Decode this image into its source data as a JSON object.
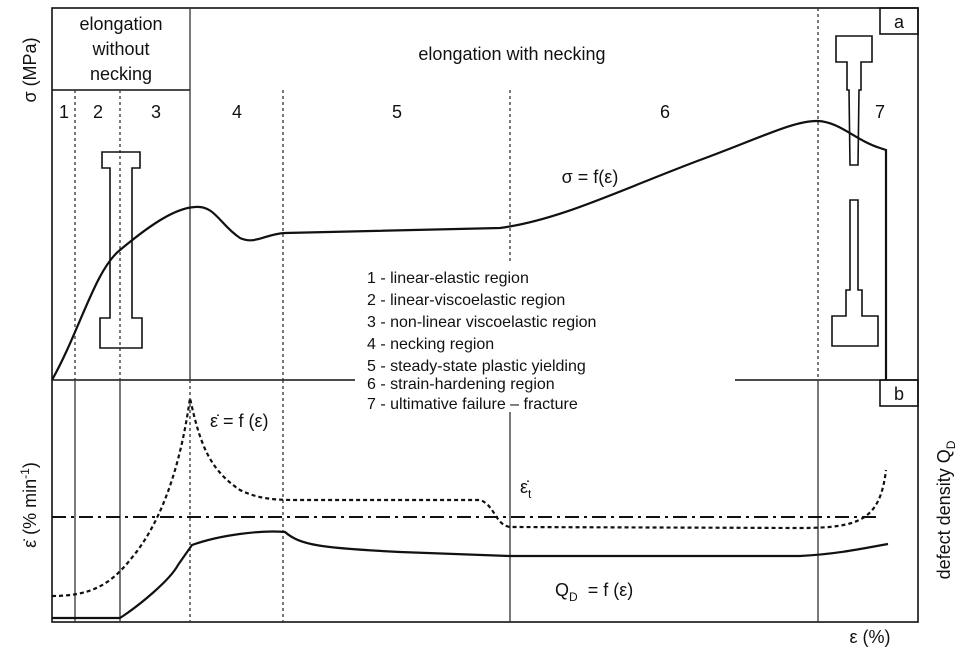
{
  "panel_a": {
    "label": "a",
    "y_axis_label": "σ (MPa)",
    "header_left": [
      "elongation",
      "without",
      "necking"
    ],
    "header_right": "elongation with necking",
    "regions": [
      "1",
      "2",
      "3",
      "4",
      "5",
      "6",
      "7"
    ],
    "curve_label": "σ = f(ε)",
    "legend": [
      "1 - linear-elastic region",
      "2 - linear-viscoelastic region",
      "3 - non-linear viscoelastic region",
      "4 - necking region",
      "5 - steady-state plastic yielding",
      "6 - strain-hardening region",
      "7 - ultimative failure – fracture"
    ]
  },
  "panel_b": {
    "label": "b",
    "y_axis_label": {
      "main": "ε̇ (% min",
      "sup": "-1",
      "end": ")"
    },
    "right_axis_label": {
      "main": "defect density Q",
      "sub": "D"
    },
    "rate_curve_label": "ε̇ = f (ε)",
    "threshold_label": {
      "main": "ε̇",
      "sub": "t"
    },
    "defect_curve_label": {
      "main": "Q",
      "sub": "D",
      "rest": "  = f (ε)"
    },
    "x_axis_label": "ε (%)"
  }
}
